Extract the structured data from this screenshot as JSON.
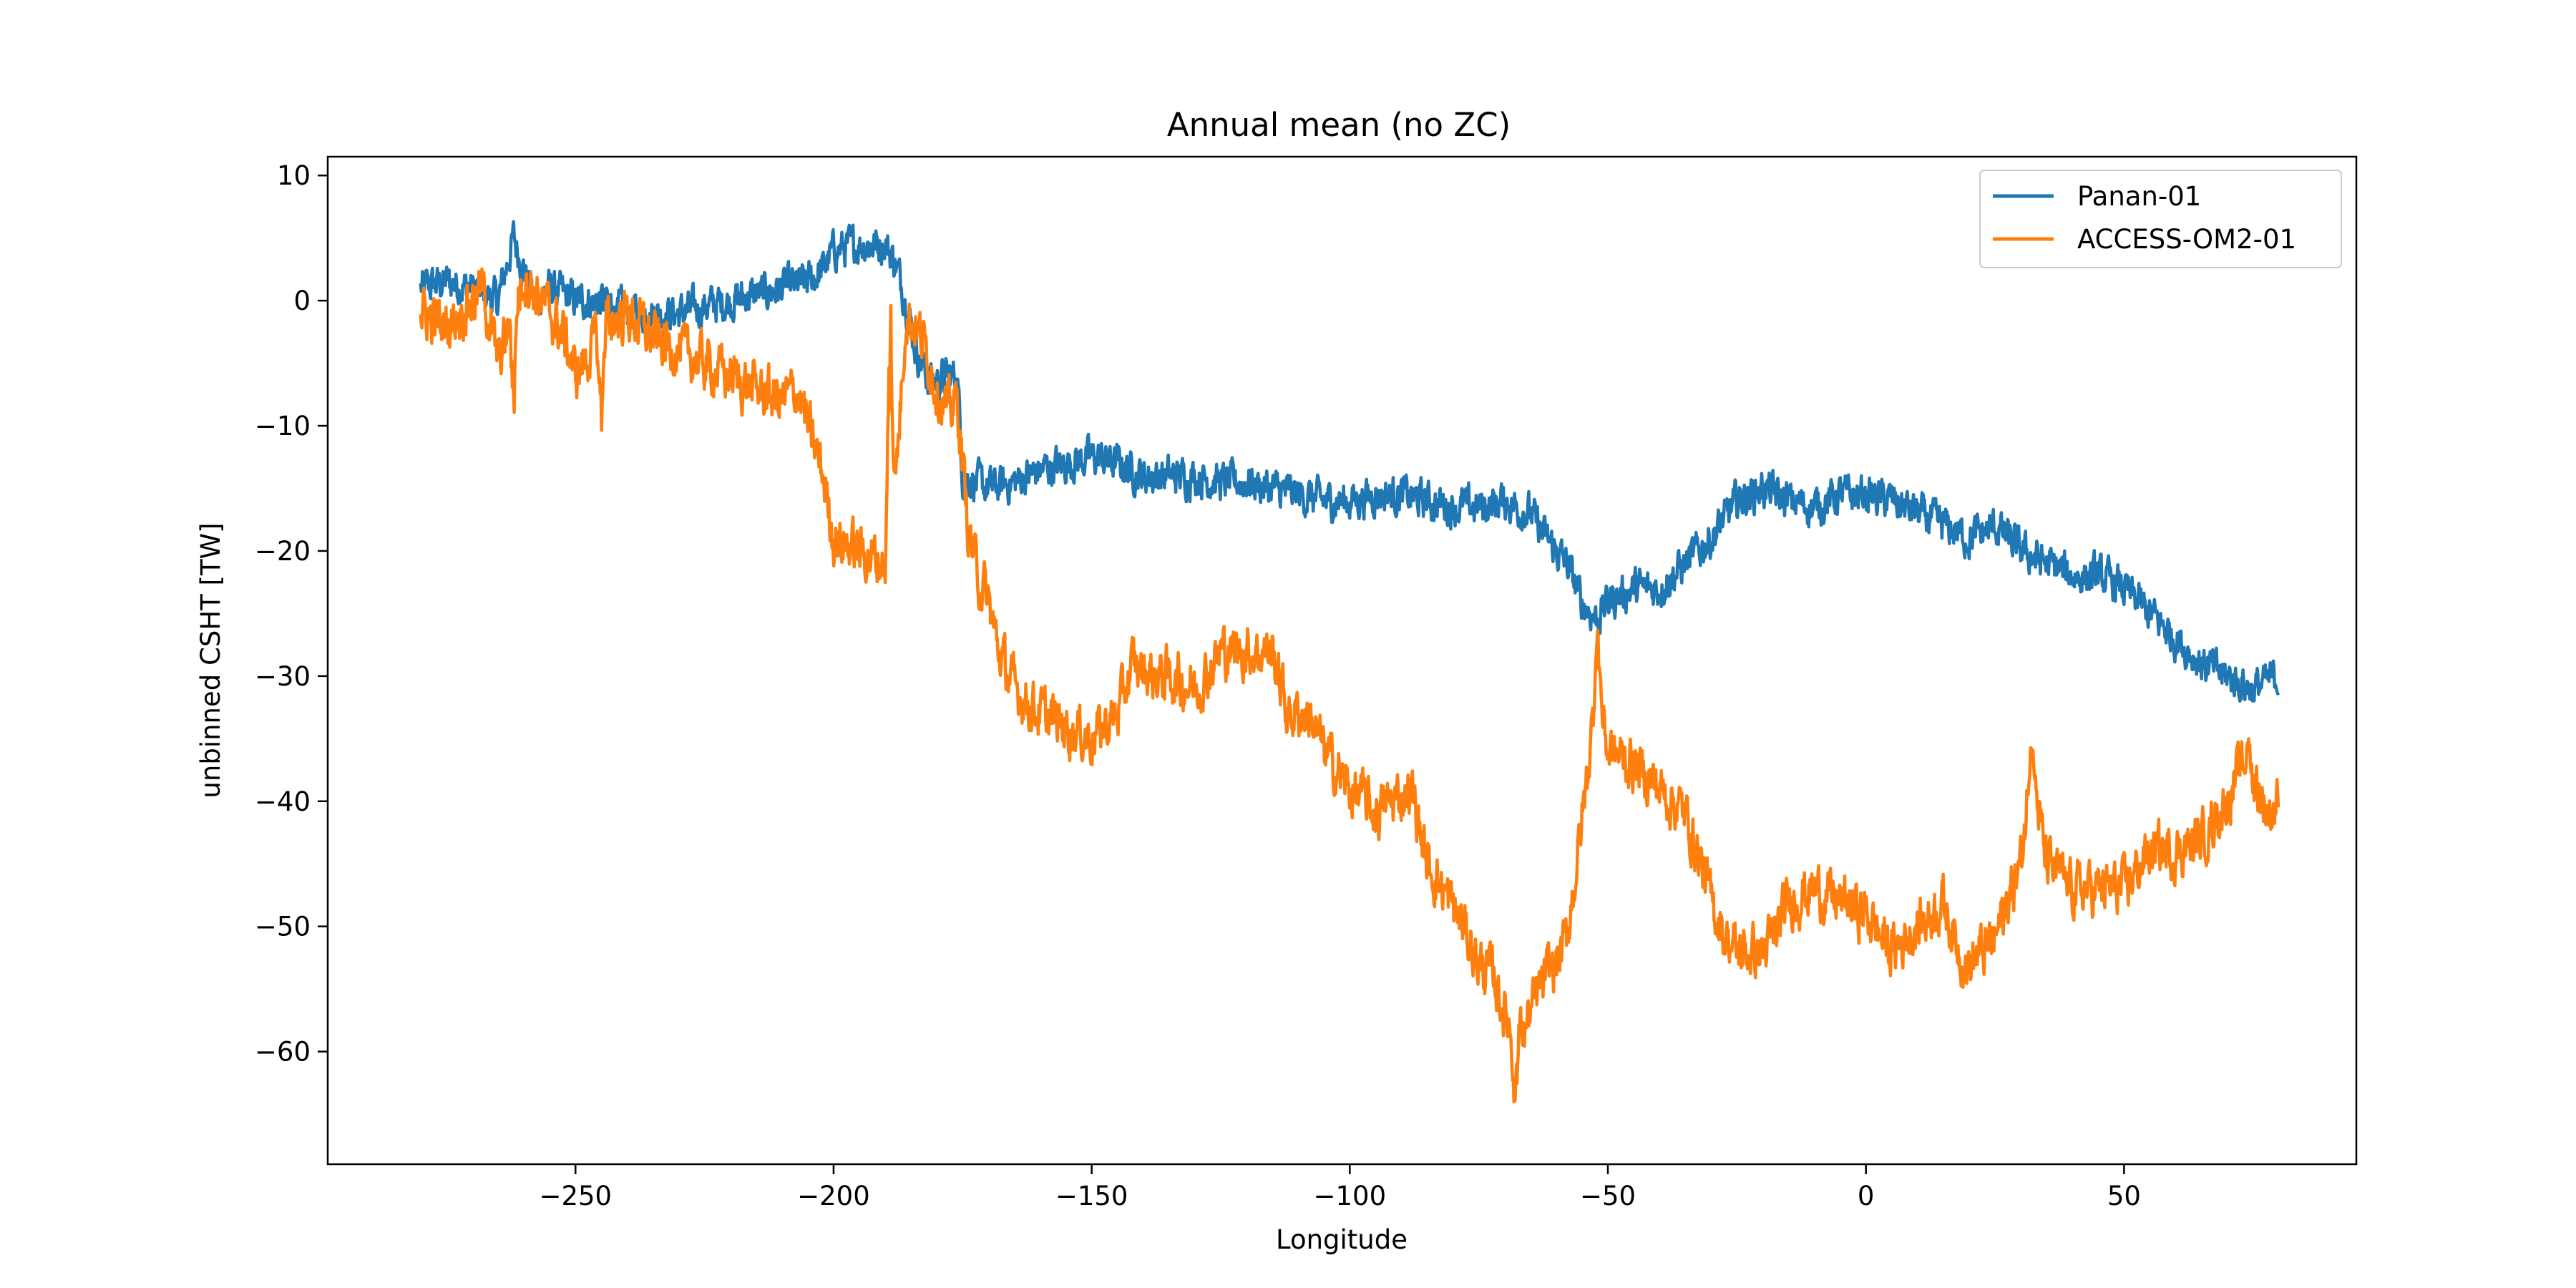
{
  "chart_data": {
    "type": "line",
    "title": "Annual mean (no ZC)",
    "xlabel": "Longitude",
    "ylabel": "unbinned CSHT [TW]",
    "xlim": [
      -298,
      95
    ],
    "ylim": [
      -69,
      11.5
    ],
    "xticks": [
      -250,
      -200,
      -150,
      -100,
      -50,
      0,
      50
    ],
    "yticks": [
      10,
      0,
      -10,
      -20,
      -30,
      -40,
      -50,
      -60
    ],
    "xtick_labels": [
      "−250",
      "−200",
      "−150",
      "−100",
      "−50",
      "0",
      "50"
    ],
    "ytick_labels": [
      "10",
      "0",
      "−10",
      "−20",
      "−30",
      "−40",
      "−50",
      "−60"
    ],
    "grid": false,
    "legend_position": "top-right",
    "series": [
      {
        "name": "Panan-01",
        "color": "#1f77b4",
        "noise": 1.6,
        "points": [
          [
            -280,
            1
          ],
          [
            -275,
            1.5
          ],
          [
            -270,
            1
          ],
          [
            -265,
            0
          ],
          [
            -262,
            5
          ],
          [
            -258,
            0
          ],
          [
            -255,
            1
          ],
          [
            -250,
            0
          ],
          [
            -245,
            0
          ],
          [
            -240,
            -1
          ],
          [
            -235,
            -1
          ],
          [
            -230,
            -1
          ],
          [
            -225,
            -0.5
          ],
          [
            -220,
            0
          ],
          [
            -215,
            0.5
          ],
          [
            -210,
            1
          ],
          [
            -205,
            1.5
          ],
          [
            -202,
            2.5
          ],
          [
            -200,
            4
          ],
          [
            -195,
            4.5
          ],
          [
            -190,
            4.5
          ],
          [
            -188,
            3
          ],
          [
            -186,
            0
          ],
          [
            -184,
            -4
          ],
          [
            -182,
            -6
          ],
          [
            -180,
            -6.5
          ],
          [
            -178,
            -6
          ],
          [
            -176,
            -6
          ],
          [
            -175,
            -14
          ],
          [
            -170,
            -15
          ],
          [
            -165,
            -14.5
          ],
          [
            -160,
            -13.5
          ],
          [
            -155,
            -13
          ],
          [
            -150,
            -12.5
          ],
          [
            -145,
            -13
          ],
          [
            -140,
            -14
          ],
          [
            -135,
            -14
          ],
          [
            -130,
            -14
          ],
          [
            -125,
            -14.5
          ],
          [
            -120,
            -14.5
          ],
          [
            -115,
            -15
          ],
          [
            -110,
            -15.5
          ],
          [
            -105,
            -16
          ],
          [
            -100,
            -16
          ],
          [
            -95,
            -15.5
          ],
          [
            -90,
            -15.5
          ],
          [
            -85,
            -16
          ],
          [
            -80,
            -16.5
          ],
          [
            -75,
            -16.5
          ],
          [
            -70,
            -16
          ],
          [
            -65,
            -17
          ],
          [
            -62,
            -19
          ],
          [
            -58,
            -21
          ],
          [
            -55,
            -24
          ],
          [
            -52,
            -25.5
          ],
          [
            -50,
            -24
          ],
          [
            -45,
            -23
          ],
          [
            -40,
            -23
          ],
          [
            -35,
            -21
          ],
          [
            -30,
            -19
          ],
          [
            -25,
            -16
          ],
          [
            -20,
            -15
          ],
          [
            -15,
            -16
          ],
          [
            -10,
            -16.5
          ],
          [
            -5,
            -15.5
          ],
          [
            0,
            -15.5
          ],
          [
            5,
            -16
          ],
          [
            10,
            -17
          ],
          [
            15,
            -18
          ],
          [
            20,
            -19
          ],
          [
            25,
            -18
          ],
          [
            30,
            -20
          ],
          [
            35,
            -21
          ],
          [
            40,
            -22
          ],
          [
            45,
            -22
          ],
          [
            50,
            -23
          ],
          [
            55,
            -25
          ],
          [
            60,
            -27
          ],
          [
            65,
            -29
          ],
          [
            70,
            -30
          ],
          [
            75,
            -31
          ],
          [
            80,
            -30
          ]
        ]
      },
      {
        "name": "ACCESS-OM2-01",
        "color": "#ff7f0e",
        "noise": 2.2,
        "points": [
          [
            -280,
            -1
          ],
          [
            -275,
            -2
          ],
          [
            -270,
            0
          ],
          [
            -268,
            1
          ],
          [
            -265,
            -5
          ],
          [
            -262,
            -1
          ],
          [
            -260,
            2
          ],
          [
            -255,
            -1
          ],
          [
            -252,
            -3
          ],
          [
            -250,
            -6
          ],
          [
            -247,
            -4
          ],
          [
            -245,
            -2
          ],
          [
            -240,
            -1
          ],
          [
            -235,
            -3
          ],
          [
            -230,
            -4
          ],
          [
            -225,
            -5
          ],
          [
            -220,
            -6
          ],
          [
            -215,
            -7
          ],
          [
            -210,
            -8
          ],
          [
            -207,
            -7
          ],
          [
            -205,
            -10
          ],
          [
            -202,
            -14
          ],
          [
            -200,
            -19
          ],
          [
            -195,
            -20
          ],
          [
            -190,
            -21
          ],
          [
            -188,
            -15
          ],
          [
            -186,
            -1
          ],
          [
            -184,
            -2
          ],
          [
            -182,
            -4
          ],
          [
            -180,
            -7
          ],
          [
            -178,
            -9
          ],
          [
            -176,
            -8
          ],
          [
            -174,
            -18
          ],
          [
            -172,
            -22
          ],
          [
            -170,
            -24
          ],
          [
            -168,
            -28
          ],
          [
            -165,
            -31
          ],
          [
            -160,
            -33
          ],
          [
            -155,
            -34
          ],
          [
            -150,
            -35
          ],
          [
            -145,
            -33
          ],
          [
            -142,
            -29
          ],
          [
            -138,
            -30
          ],
          [
            -135,
            -30
          ],
          [
            -130,
            -31
          ],
          [
            -128,
            -30
          ],
          [
            -125,
            -28
          ],
          [
            -120,
            -28
          ],
          [
            -115,
            -28
          ],
          [
            -112,
            -33
          ],
          [
            -108,
            -33
          ],
          [
            -105,
            -36
          ],
          [
            -100,
            -39
          ],
          [
            -97,
            -40
          ],
          [
            -95,
            -41
          ],
          [
            -92,
            -40
          ],
          [
            -88,
            -39
          ],
          [
            -85,
            -45
          ],
          [
            -82,
            -47
          ],
          [
            -78,
            -50
          ],
          [
            -75,
            -53
          ],
          [
            -72,
            -54
          ],
          [
            -70,
            -57
          ],
          [
            -68,
            -59
          ],
          [
            -66,
            -58
          ],
          [
            -64,
            -56
          ],
          [
            -62,
            -54
          ],
          [
            -60,
            -53
          ],
          [
            -58,
            -51
          ],
          [
            -56,
            -45
          ],
          [
            -54,
            -38
          ],
          [
            -52,
            -30
          ],
          [
            -50,
            -36
          ],
          [
            -45,
            -37
          ],
          [
            -40,
            -39
          ],
          [
            -35,
            -41
          ],
          [
            -32,
            -45
          ],
          [
            -30,
            -48
          ],
          [
            -27,
            -51
          ],
          [
            -25,
            -52
          ],
          [
            -20,
            -52
          ],
          [
            -18,
            -51
          ],
          [
            -15,
            -48
          ],
          [
            -10,
            -47
          ],
          [
            -5,
            -48
          ],
          [
            0,
            -49
          ],
          [
            5,
            -52
          ],
          [
            10,
            -50
          ],
          [
            15,
            -48
          ],
          [
            18,
            -52
          ],
          [
            20,
            -53
          ],
          [
            25,
            -51
          ],
          [
            30,
            -45
          ],
          [
            32,
            -37
          ],
          [
            35,
            -45
          ],
          [
            40,
            -47
          ],
          [
            45,
            -47
          ],
          [
            50,
            -47
          ],
          [
            55,
            -44
          ],
          [
            60,
            -44
          ],
          [
            65,
            -43
          ],
          [
            70,
            -40
          ],
          [
            73,
            -37
          ],
          [
            75,
            -38
          ],
          [
            78,
            -41
          ],
          [
            80,
            -40
          ]
        ],
        "spikes": [
          [
            -189,
            3.5
          ],
          [
            -68,
            -65
          ],
          [
            -52,
            -26
          ],
          [
            32,
            -34.5
          ],
          [
            74,
            -34.5
          ],
          [
            -262,
            -11
          ],
          [
            -245,
            -11
          ]
        ]
      }
    ]
  }
}
